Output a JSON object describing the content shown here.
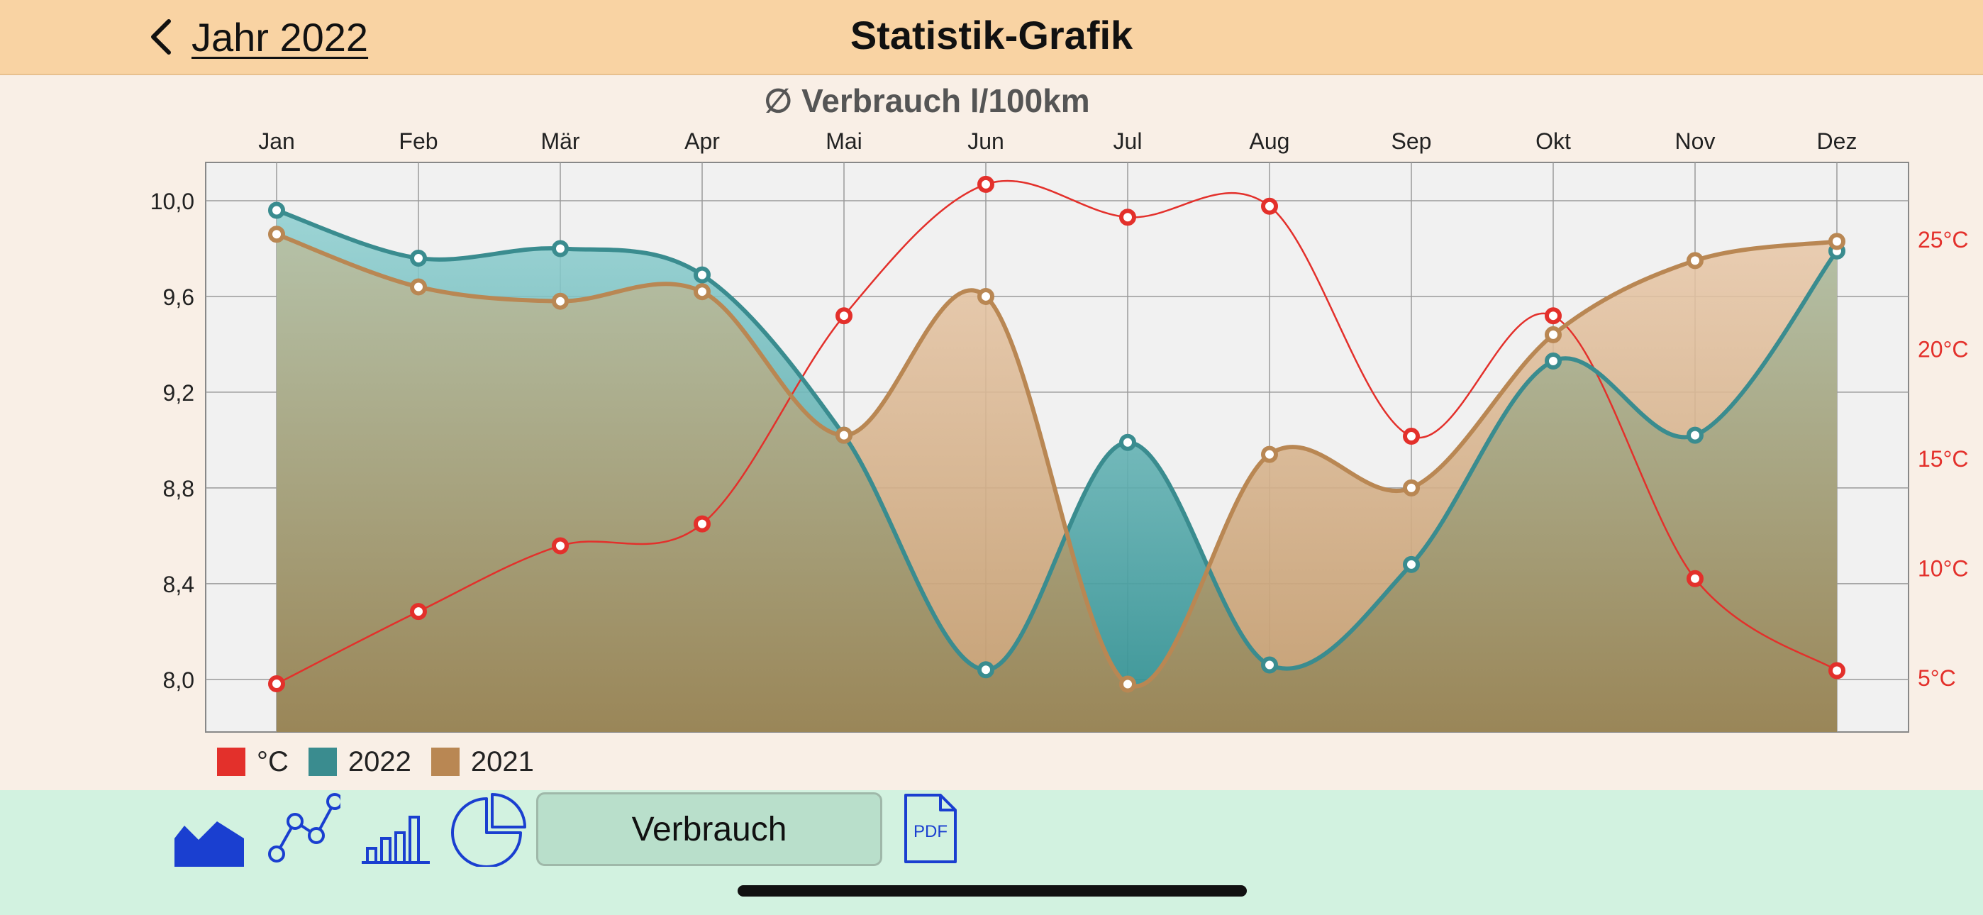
{
  "header": {
    "back_label": "Jahr 2022",
    "title": "Statistik-Grafik"
  },
  "toolbar": {
    "active_label": "Verbrauch",
    "pdf_label": "PDF",
    "icons": [
      "area-chart-icon",
      "line-chart-icon",
      "bar-chart-icon",
      "pie-chart-icon",
      "pdf-icon"
    ]
  },
  "colors": {
    "header_bg": "#f9d3a3",
    "page_bg": "#f9efe6",
    "toolbar_bg": "#d2f2e0",
    "temperature": "#e3302b",
    "series_2022": "#3a8c8f",
    "series_2021": "#b98753",
    "toolbar_icon": "#1a3fd0"
  },
  "chart_data": {
    "type": "area",
    "title": "∅ Verbrauch l/100km",
    "categories": [
      "Jan",
      "Feb",
      "Mär",
      "Apr",
      "Mai",
      "Jun",
      "Jul",
      "Aug",
      "Sep",
      "Okt",
      "Nov",
      "Dez"
    ],
    "ylim": [
      7.78,
      10.16
    ],
    "yticks": [
      8.0,
      8.4,
      8.8,
      9.2,
      9.6,
      10.0
    ],
    "ytick_labels": [
      "8,0",
      "8,4",
      "8,8",
      "9,2",
      "9,6",
      "10,0"
    ],
    "y2lim": [
      2.5,
      28.5
    ],
    "y2ticks": [
      5,
      10,
      15,
      20,
      25
    ],
    "y2tick_labels": [
      "5°C",
      "10°C",
      "15°C",
      "20°C",
      "25°C"
    ],
    "grid": true,
    "legend_position": "bottom-left",
    "series": [
      {
        "name": "°C",
        "axis": "right",
        "style": "line",
        "values": [
          4.7,
          8.0,
          11.0,
          12.0,
          21.5,
          27.5,
          26.0,
          26.5,
          16.0,
          21.5,
          9.5,
          5.3
        ]
      },
      {
        "name": "2022",
        "axis": "left",
        "style": "area",
        "values": [
          9.96,
          9.76,
          9.8,
          9.69,
          9.02,
          8.04,
          8.99,
          8.06,
          8.48,
          9.33,
          9.02,
          9.79
        ]
      },
      {
        "name": "2021",
        "axis": "left",
        "style": "area",
        "values": [
          9.86,
          9.64,
          9.58,
          9.62,
          9.02,
          9.6,
          7.98,
          8.94,
          8.8,
          9.44,
          9.75,
          9.83
        ]
      }
    ]
  }
}
